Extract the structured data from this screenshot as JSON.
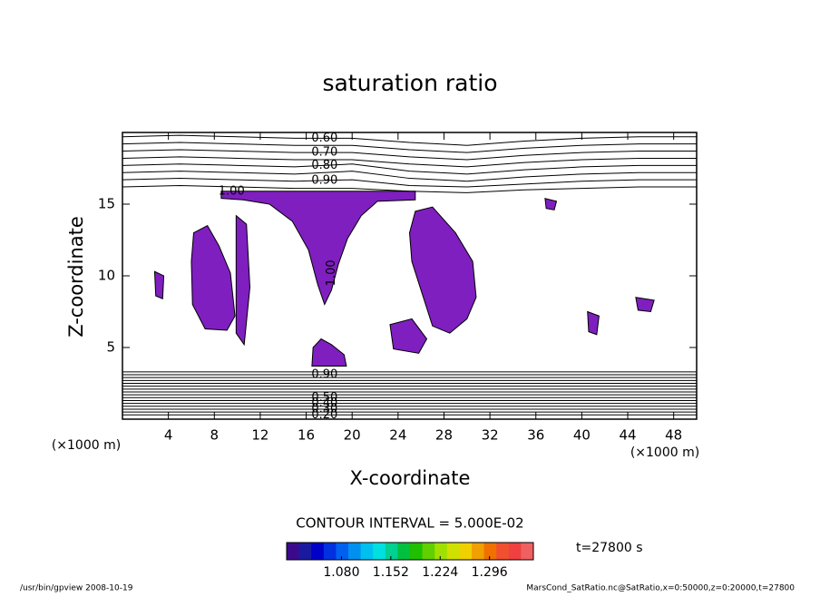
{
  "chart_data": {
    "type": "contour",
    "title": "saturation ratio",
    "xlabel": "X-coordinate",
    "ylabel": "Z-coordinate",
    "xunit": "(×1000 m)",
    "yunit": "(×1000 m)",
    "xlim": [
      0,
      50
    ],
    "ylim": [
      0,
      20
    ],
    "xticks": [
      4,
      8,
      12,
      16,
      20,
      24,
      28,
      32,
      36,
      40,
      44,
      48
    ],
    "yticks": [
      5,
      10,
      15
    ],
    "contour_interval": "CONTOUR INTERVAL = 5.000E-02",
    "time_label": "t=27800 s",
    "footer_left": "/usr/bin/gpview   2008-10-19",
    "footer_right": "MarsCond_SatRatio.nc@SatRatio,x=0:50000,z=0:20000,t=27800",
    "region_color": "#7f1fbf",
    "contour_x": [
      0,
      5,
      10,
      15,
      20,
      25,
      30,
      35,
      40,
      45,
      50
    ],
    "contour_lines": [
      {
        "level": 0.6,
        "level_label": "0.60",
        "z": [
          19.7,
          19.8,
          19.7,
          19.6,
          19.6,
          19.3,
          19.1,
          19.4,
          19.6,
          19.7,
          19.7
        ]
      },
      {
        "level": 0.65,
        "z": [
          19.2,
          19.3,
          19.2,
          19.1,
          19.1,
          18.8,
          18.6,
          18.9,
          19.1,
          19.2,
          19.2
        ]
      },
      {
        "level": 0.7,
        "level_label": "0.70",
        "z": [
          18.7,
          18.8,
          18.7,
          18.6,
          18.6,
          18.3,
          18.1,
          18.4,
          18.6,
          18.7,
          18.7
        ]
      },
      {
        "level": 0.75,
        "z": [
          18.2,
          18.3,
          18.2,
          18.1,
          18.1,
          17.8,
          17.6,
          17.9,
          18.1,
          18.2,
          18.2
        ]
      },
      {
        "level": 0.8,
        "level_label": "0.80",
        "z": [
          17.7,
          17.8,
          17.7,
          17.6,
          17.8,
          17.3,
          17.1,
          17.4,
          17.6,
          17.7,
          17.7
        ]
      },
      {
        "level": 0.85,
        "z": [
          17.2,
          17.3,
          17.2,
          17.1,
          17.3,
          16.8,
          16.6,
          16.9,
          17.1,
          17.2,
          17.2
        ]
      },
      {
        "level": 0.9,
        "level_label": "0.90",
        "z": [
          16.7,
          16.8,
          16.7,
          16.6,
          16.7,
          16.3,
          16.2,
          16.4,
          16.6,
          16.7,
          16.7
        ]
      },
      {
        "level": 0.95,
        "z": [
          16.2,
          16.3,
          16.2,
          16.1,
          16.1,
          15.9,
          15.8,
          16.0,
          16.1,
          16.2,
          16.2
        ]
      },
      {
        "level": 0.95,
        "z": 3.3
      },
      {
        "level": 0.9,
        "level_label": "0.90",
        "z": 3.1
      },
      {
        "level": 0.85,
        "z": 2.9
      },
      {
        "level": 0.8,
        "z": 2.7
      },
      {
        "level": 0.75,
        "z": 2.5
      },
      {
        "level": 0.7,
        "z": 2.3
      },
      {
        "level": 0.65,
        "z": 2.1
      },
      {
        "level": 0.6,
        "z": 1.9
      },
      {
        "level": 0.55,
        "z": 1.7
      },
      {
        "level": 0.5,
        "level_label": "0.50",
        "z": 1.5
      },
      {
        "level": 0.45,
        "z": 1.3
      },
      {
        "level": 0.4,
        "level_label": "0.40",
        "z": 1.1
      },
      {
        "level": 0.35,
        "z": 0.9
      },
      {
        "level": 0.3,
        "level_label": "0.30",
        "z": 0.7
      },
      {
        "level": 0.25,
        "z": 0.5
      },
      {
        "level": 0.2,
        "level_label": "0.20",
        "z": 0.3
      }
    ],
    "contour_labels": [
      {
        "x": 9.5,
        "z": 15.9,
        "value": 1.0,
        "label": "1.00"
      },
      {
        "x": 18.2,
        "z": 10.2,
        "value": 1.0,
        "label": "1.00",
        "vertical": true
      }
    ],
    "regions": [
      {
        "x": [
          8.6,
          25.5,
          25.5,
          22.2,
          20.8,
          19.6,
          18.8,
          18.2,
          17.6,
          17.0,
          16.2,
          14.8,
          12.8,
          10.5,
          8.6
        ],
        "z": [
          15.9,
          15.9,
          15.3,
          15.2,
          14.2,
          12.6,
          10.8,
          9.0,
          8.0,
          9.4,
          11.8,
          13.8,
          15.0,
          15.3,
          15.4
        ]
      },
      {
        "x": [
          6.2,
          7.4,
          8.4,
          9.4,
          9.8,
          9.1,
          7.2,
          6.1,
          6.0
        ],
        "z": [
          13.0,
          13.5,
          12.1,
          10.2,
          7.2,
          6.2,
          6.3,
          8.0,
          11.0
        ]
      },
      {
        "x": [
          9.9,
          10.8,
          11.1,
          10.6,
          9.9
        ],
        "z": [
          14.2,
          13.6,
          9.2,
          5.2,
          6.0
        ]
      },
      {
        "x": [
          25.5,
          27.0,
          29.0,
          30.5,
          30.8,
          30.0,
          28.5,
          27.0,
          26.0,
          25.2,
          25.0
        ],
        "z": [
          14.5,
          14.8,
          13.0,
          11.0,
          8.5,
          7.0,
          6.0,
          6.5,
          9.0,
          11.0,
          13.0
        ]
      },
      {
        "x": [
          16.6,
          17.3,
          18.2,
          19.3,
          19.5,
          16.5
        ],
        "z": [
          5.0,
          5.6,
          5.2,
          4.5,
          3.7,
          3.7
        ]
      },
      {
        "x": [
          40.5,
          41.5,
          41.3,
          40.6
        ],
        "z": [
          7.5,
          7.2,
          5.9,
          6.1
        ]
      },
      {
        "x": [
          44.7,
          46.3,
          46.0,
          44.9
        ],
        "z": [
          8.5,
          8.3,
          7.5,
          7.6
        ]
      },
      {
        "x": [
          23.3,
          25.2,
          26.5,
          25.8,
          23.6
        ],
        "z": [
          6.6,
          7.0,
          5.6,
          4.6,
          4.9
        ]
      },
      {
        "x": [
          2.8,
          3.6,
          3.5,
          2.9
        ],
        "z": [
          10.3,
          10.0,
          8.4,
          8.6
        ]
      },
      {
        "x": [
          36.8,
          37.8,
          37.6,
          36.9
        ],
        "z": [
          15.4,
          15.2,
          14.6,
          14.7
        ]
      }
    ],
    "colorbar": {
      "lim": [
        1.0,
        1.36
      ],
      "ticks": [
        {
          "value": 1.08,
          "label": "1.080"
        },
        {
          "value": 1.152,
          "label": "1.152"
        },
        {
          "value": 1.224,
          "label": "1.224"
        },
        {
          "value": 1.296,
          "label": "1.296"
        }
      ],
      "colors": [
        "#3b0a8c",
        "#1a1aa0",
        "#0000c8",
        "#0030e0",
        "#0060f0",
        "#0090f0",
        "#00c0f0",
        "#00e0e0",
        "#00d090",
        "#00c040",
        "#20c000",
        "#60d000",
        "#a0e000",
        "#d0e000",
        "#f0d000",
        "#f0a000",
        "#f07000",
        "#f05030",
        "#f04040",
        "#f06060"
      ]
    }
  }
}
